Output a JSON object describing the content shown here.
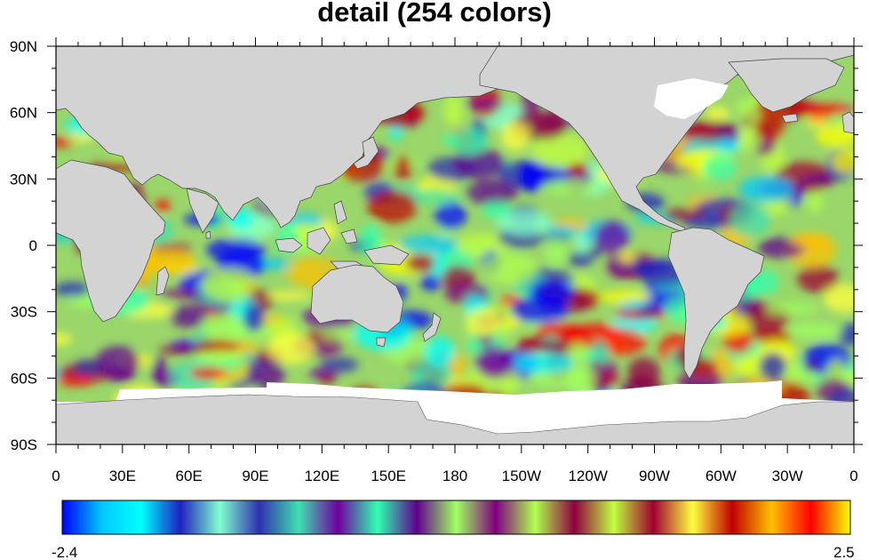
{
  "title": "detail (254 colors)",
  "map": {
    "lat_labels": [
      "90N",
      "60N",
      "30N",
      "0",
      "30S",
      "60S",
      "90S"
    ],
    "lon_labels": [
      "0",
      "30E",
      "60E",
      "90E",
      "120E",
      "150E",
      "180",
      "150W",
      "120W",
      "90W",
      "60W",
      "30W",
      "0"
    ],
    "land_color": "#d3d3d3",
    "ice_color": "#ffffff",
    "lat_range": [
      -90,
      90
    ],
    "lon_range": [
      0,
      360
    ],
    "field_range": [
      -2.4,
      2.5
    ]
  },
  "colorbar": {
    "min_label": "-2.4",
    "max_label": "2.5",
    "colormap": "detail",
    "n_colors": 254,
    "stops": [
      "#0000ff",
      "#00c8ff",
      "#00ffff",
      "#2020c0",
      "#80ffd0",
      "#3030b0",
      "#40e0b0",
      "#7000a0",
      "#30ffb0",
      "#600090",
      "#a0ff60",
      "#800080",
      "#b0ff50",
      "#900040",
      "#c0ff40",
      "#a00030",
      "#ffff40",
      "#c00000",
      "#ffc000",
      "#ff0000",
      "#ffff00"
    ]
  }
}
